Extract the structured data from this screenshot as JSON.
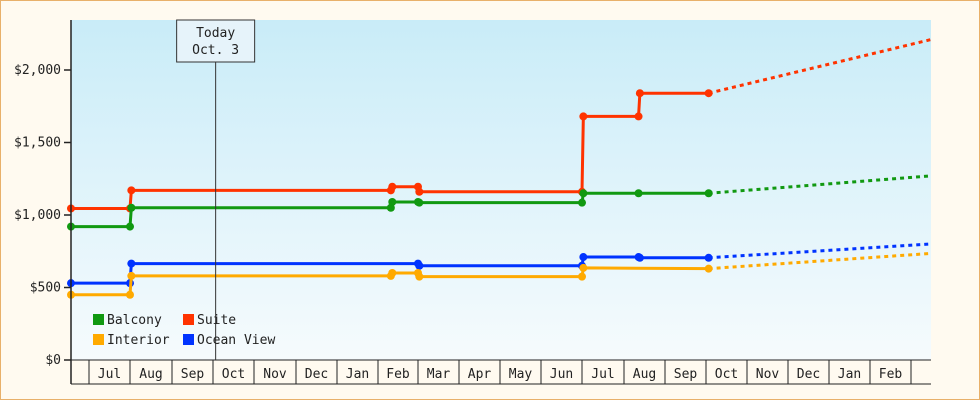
{
  "chart_data": {
    "type": "line",
    "title": "",
    "xlabel": "",
    "ylabel": "",
    "ylim": [
      0,
      2350
    ],
    "yticks": [
      0,
      500,
      1000,
      1500,
      2000
    ],
    "ytick_labels": [
      "$0",
      "$500",
      "$1,000",
      "$1,500",
      "$2,000"
    ],
    "x_ticks": [
      "Jul",
      "Aug",
      "Sep",
      "Oct",
      "Nov",
      "Dec",
      "Jan",
      "Feb",
      "Mar",
      "Apr",
      "May",
      "Jun",
      "Jul",
      "Aug",
      "Sep",
      "Oct",
      "Nov",
      "Dec",
      "Jan",
      "Feb"
    ],
    "today_marker": {
      "line1": "Today",
      "line2": "Oct. 3",
      "x": "Oct 3"
    },
    "step": true,
    "series": [
      {
        "name": "Suite",
        "color": "#ff3300",
        "points": [
          [
            "Jun 1",
            1045
          ],
          [
            "Aug 1",
            1045
          ],
          [
            "Aug 2",
            1170
          ],
          [
            "Feb 10",
            1170
          ],
          [
            "Feb 11",
            1195
          ],
          [
            "Mar 1",
            1195
          ],
          [
            "Mar 2",
            1160
          ],
          [
            "Jul 1",
            1160
          ],
          [
            "Jul 2",
            1680
          ],
          [
            "Aug 12",
            1680
          ],
          [
            "Aug 13",
            1840
          ],
          [
            "Oct 3",
            1840
          ]
        ],
        "projection": [
          [
            "Oct 3",
            1840
          ],
          [
            "Mar 1",
            2210
          ]
        ]
      },
      {
        "name": "Balcony",
        "color": "#119911",
        "points": [
          [
            "Jun 1",
            920
          ],
          [
            "Aug 1",
            920
          ],
          [
            "Aug 2",
            1050
          ],
          [
            "Feb 10",
            1050
          ],
          [
            "Feb 11",
            1090
          ],
          [
            "Mar 1",
            1090
          ],
          [
            "Mar 2",
            1085
          ],
          [
            "Jul 1",
            1085
          ],
          [
            "Jul 2",
            1150
          ],
          [
            "Aug 12",
            1150
          ],
          [
            "Oct 3",
            1150
          ]
        ],
        "projection": [
          [
            "Oct 3",
            1150
          ],
          [
            "Mar 1",
            1270
          ]
        ]
      },
      {
        "name": "Ocean View",
        "color": "#0033ff",
        "points": [
          [
            "Jun 1",
            530
          ],
          [
            "Aug 1",
            530
          ],
          [
            "Aug 2",
            665
          ],
          [
            "Mar 1",
            665
          ],
          [
            "Mar 2",
            650
          ],
          [
            "Jul 1",
            650
          ],
          [
            "Jul 2",
            710
          ],
          [
            "Aug 12",
            710
          ],
          [
            "Aug 13",
            705
          ],
          [
            "Oct 3",
            705
          ]
        ],
        "projection": [
          [
            "Oct 3",
            705
          ],
          [
            "Mar 1",
            800
          ]
        ]
      },
      {
        "name": "Interior",
        "color": "#ffaa00",
        "points": [
          [
            "Jun 1",
            450
          ],
          [
            "Aug 1",
            450
          ],
          [
            "Aug 2",
            580
          ],
          [
            "Feb 10",
            580
          ],
          [
            "Feb 11",
            600
          ],
          [
            "Mar 1",
            600
          ],
          [
            "Mar 2",
            575
          ],
          [
            "Jul 1",
            575
          ],
          [
            "Jul 2",
            635
          ],
          [
            "Oct 3",
            630
          ]
        ],
        "projection": [
          [
            "Oct 3",
            630
          ],
          [
            "Mar 1",
            735
          ]
        ]
      }
    ],
    "legend": [
      {
        "name": "Balcony",
        "color": "#119911"
      },
      {
        "name": "Suite",
        "color": "#ff3300"
      },
      {
        "name": "Interior",
        "color": "#ffaa00"
      },
      {
        "name": "Ocean View",
        "color": "#0033ff"
      }
    ],
    "legend_placement": "bottom-left",
    "grid": false
  }
}
